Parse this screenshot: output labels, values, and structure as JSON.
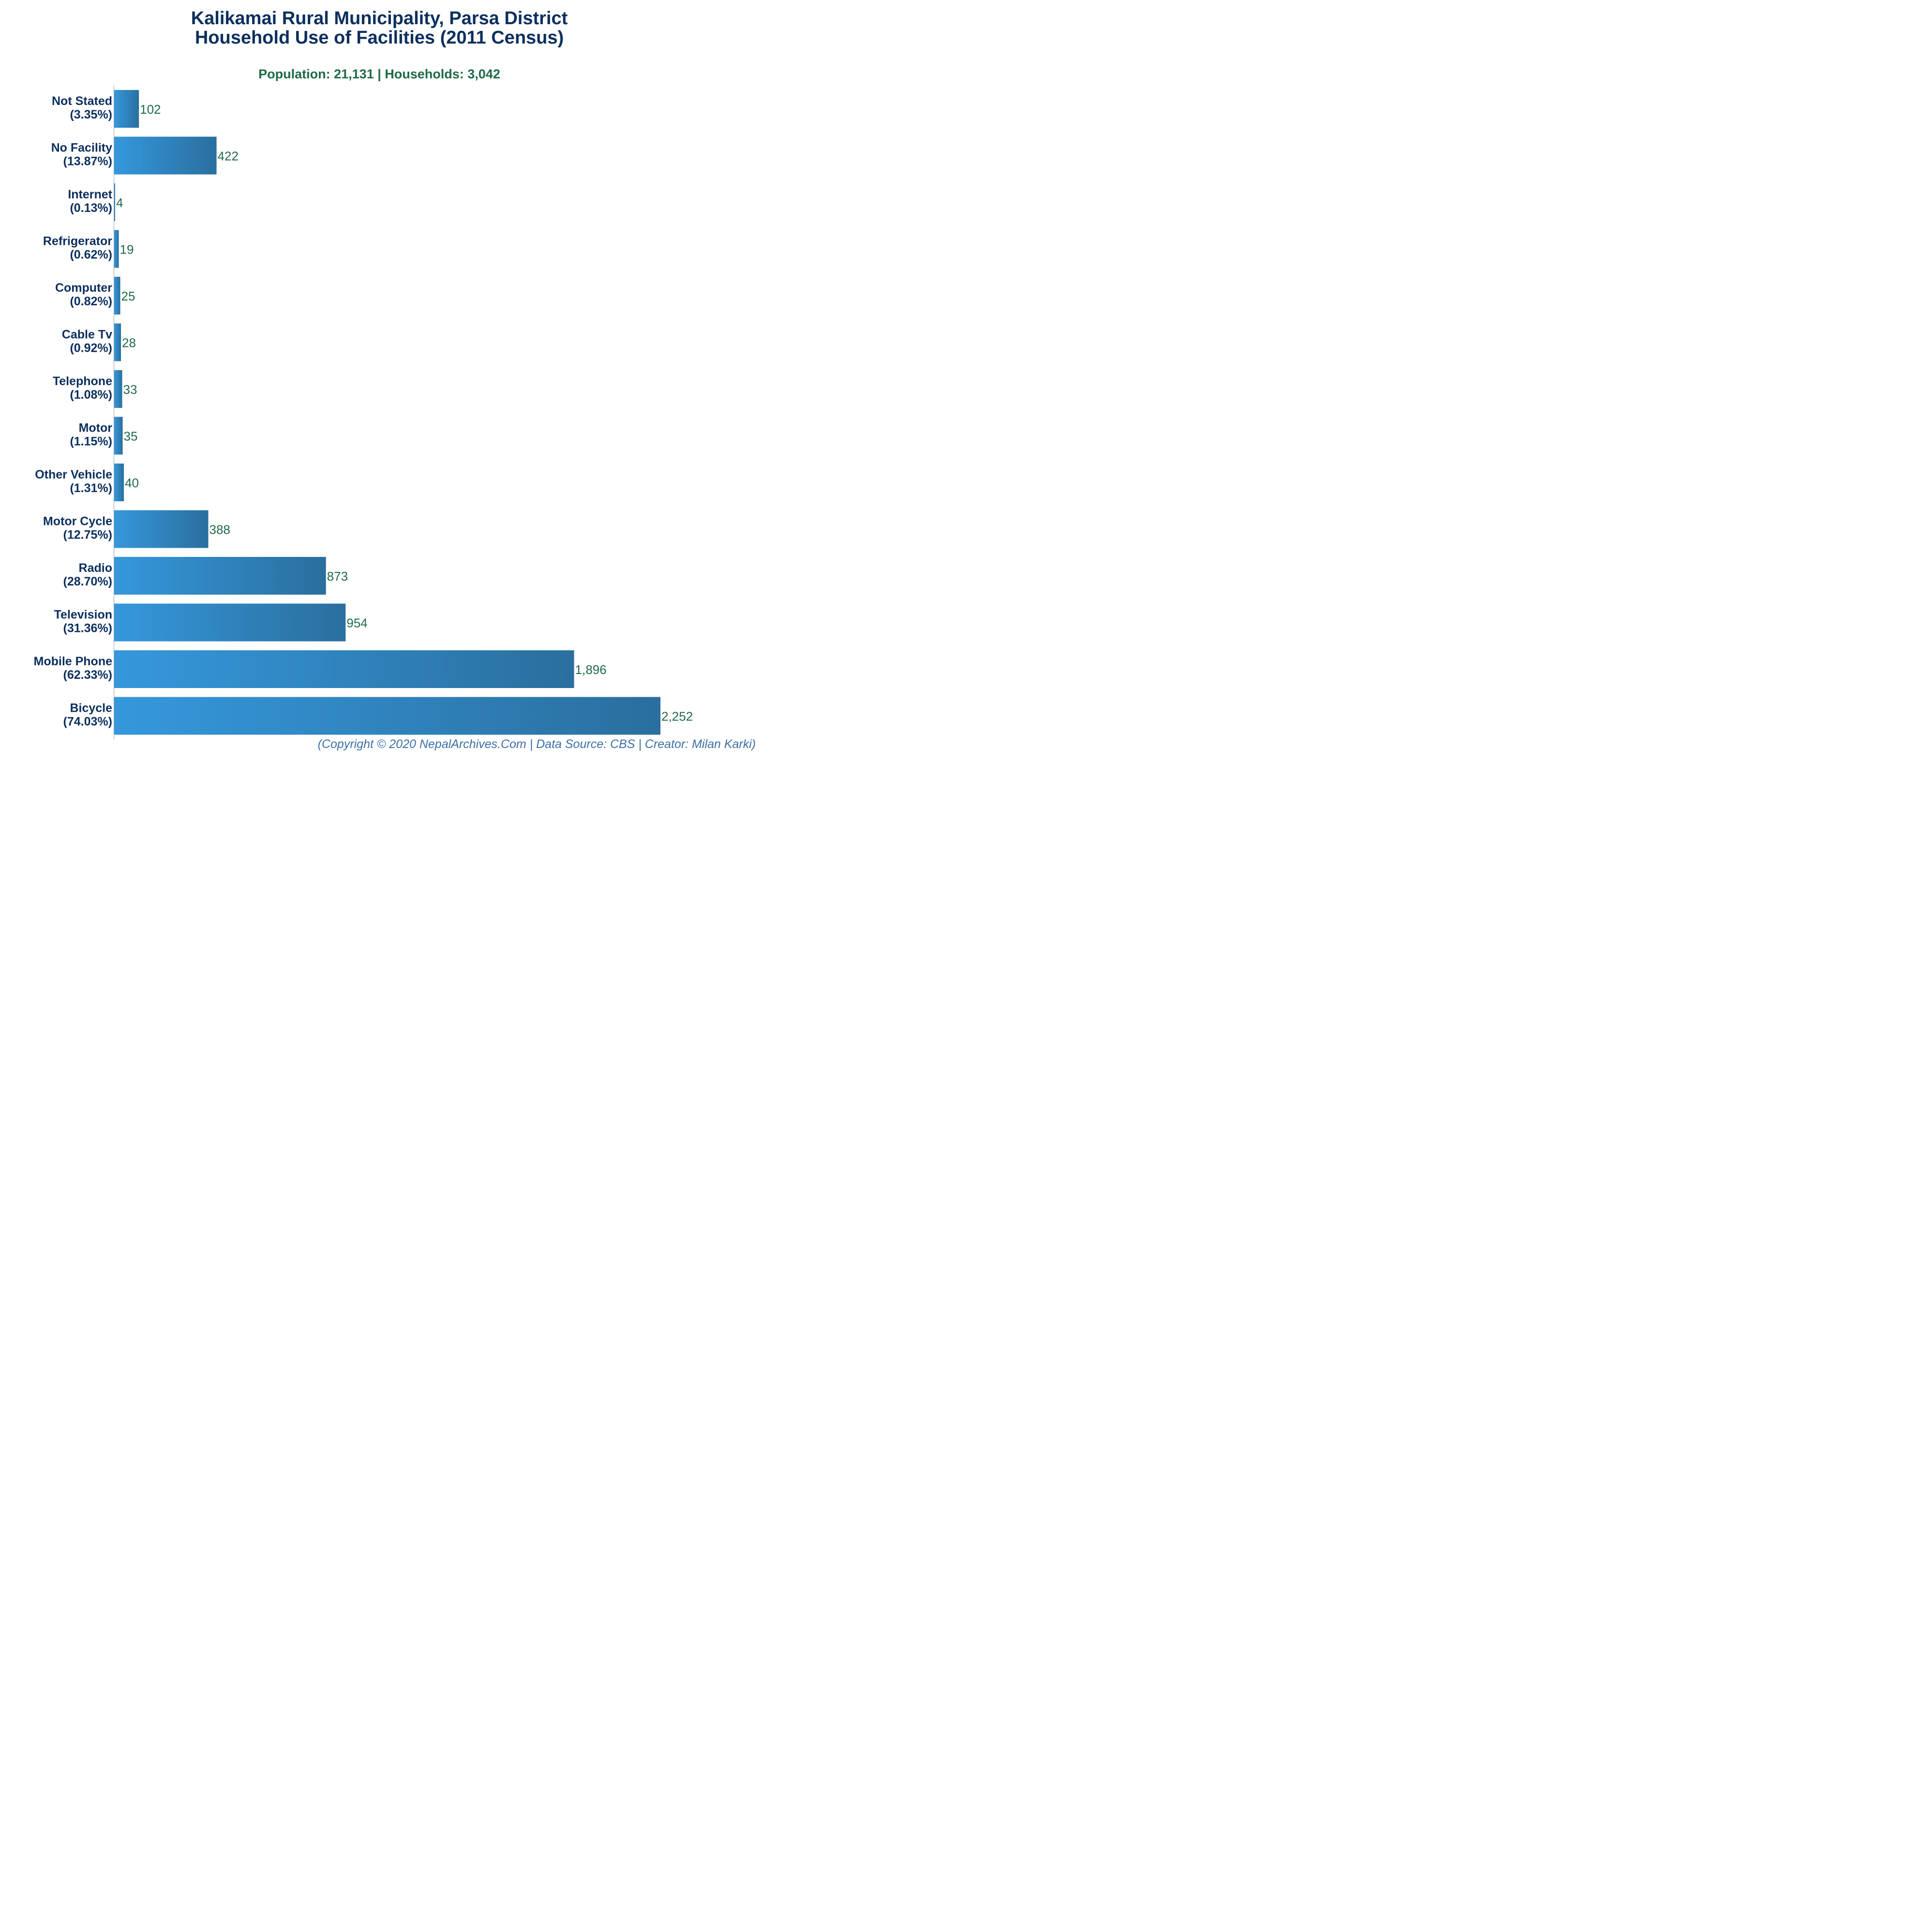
{
  "title_line1": "Kalikamai Rural Municipality, Parsa District",
  "title_line2": "Household Use of Facilities (2011 Census)",
  "subtitle": "Population: 21,131 | Households: 3,042",
  "footer": "(Copyright © 2020 NepalArchives.Com | Data Source: CBS | Creator: Milan Karki)",
  "colors": {
    "bar_left": "#3598dc",
    "bar_right": "#2a6f9e",
    "title": "#0b2f5e",
    "value_label": "#1f6b46",
    "footer": "#3b6fa8"
  },
  "chart_data": {
    "type": "bar",
    "orientation": "horizontal",
    "title": "Kalikamai Rural Municipality, Parsa District Household Use of Facilities (2011 Census)",
    "subtitle": "Population: 21,131 | Households: 3,042",
    "categories": [
      "Not Stated",
      "No Facility",
      "Internet",
      "Refrigerator",
      "Computer",
      "Cable Tv",
      "Telephone",
      "Motor",
      "Other Vehicle",
      "Motor Cycle",
      "Radio",
      "Television",
      "Mobile Phone",
      "Bicycle"
    ],
    "percent_labels": [
      "(3.35%)",
      "(13.87%)",
      "(0.13%)",
      "(0.62%)",
      "(0.82%)",
      "(0.92%)",
      "(1.08%)",
      "(1.15%)",
      "(1.31%)",
      "(12.75%)",
      "(28.70%)",
      "(31.36%)",
      "(62.33%)",
      "(74.03%)"
    ],
    "values": [
      102,
      422,
      4,
      19,
      25,
      28,
      33,
      35,
      40,
      388,
      873,
      954,
      1896,
      2252
    ],
    "value_labels": [
      "102",
      "422",
      "4",
      "19",
      "25",
      "28",
      "33",
      "35",
      "40",
      "388",
      "873",
      "954",
      "1,896",
      "2,252"
    ],
    "xlim": [
      0,
      2252
    ],
    "grid": false,
    "xlabel": "",
    "ylabel": ""
  }
}
